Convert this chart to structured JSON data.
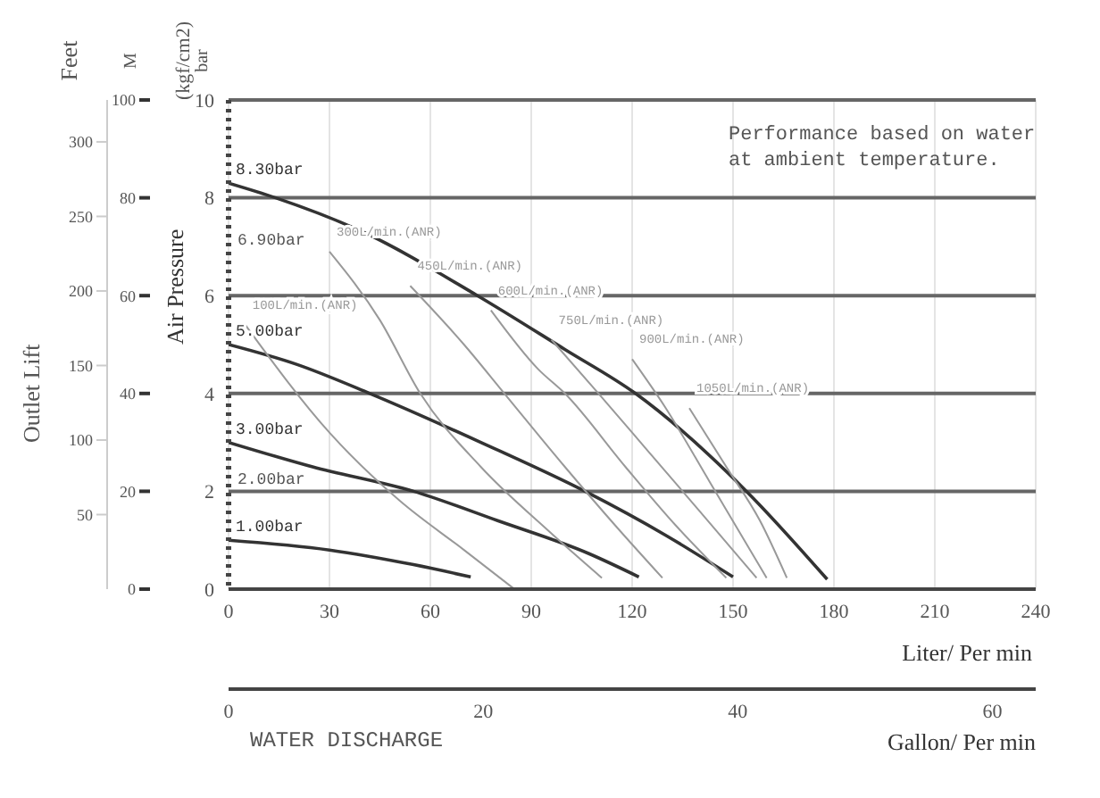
{
  "chart_data": {
    "type": "line",
    "xlabel": "Liter/ Per min",
    "ylabel": "Air Pressure",
    "y2label": "M",
    "y3label": "Feet",
    "x2label": "Gallon/ Per min",
    "xlim": [
      0,
      240
    ],
    "xticks": [
      0,
      30,
      60,
      90,
      120,
      150,
      180,
      210,
      240
    ],
    "ylim": [
      0,
      10
    ],
    "yticks": [
      0,
      2,
      4,
      6,
      8,
      10
    ],
    "y2lim": [
      0,
      100
    ],
    "y2ticks": [
      0,
      20,
      40,
      60,
      80,
      100
    ],
    "y3lim": [
      0,
      328.1
    ],
    "y3ticks": [
      50,
      100,
      150,
      200,
      250,
      300
    ],
    "x2lim": [
      0,
      63.4
    ],
    "x2ticks": [
      0,
      20,
      40,
      60
    ],
    "grid": true,
    "legend": false,
    "series": [
      {
        "name": "8.30bar",
        "color": "#333333",
        "x": [
          0,
          14,
          40,
          74,
          100,
          121,
          154,
          178
        ],
        "values": [
          8.3,
          8,
          7.3,
          6,
          4.9,
          4,
          2,
          0.2
        ]
      },
      {
        "name": "5.00bar",
        "color": "#333333",
        "x": [
          0,
          20,
          42,
          75,
          106,
          130,
          150
        ],
        "values": [
          5,
          4.6,
          4,
          3,
          2,
          1.1,
          0.25
        ]
      },
      {
        "name": "3.00bar",
        "color": "#333333",
        "x": [
          0,
          25,
          55,
          80,
          107,
          122
        ],
        "values": [
          3,
          2.5,
          2,
          1.4,
          0.73,
          0.25
        ]
      },
      {
        "name": "1.00bar",
        "color": "#333333",
        "x": [
          0,
          30,
          55,
          72
        ],
        "values": [
          1,
          0.8,
          0.5,
          0.25
        ]
      },
      {
        "name": "100L/min.(ANR)",
        "color": "#999999",
        "x": [
          5,
          30,
          51,
          70,
          85
        ],
        "values": [
          5.4,
          3.2,
          1.8,
          0.8,
          0
        ]
      },
      {
        "name": "300L/min.(ANR)",
        "color": "#999999",
        "x": [
          30,
          45,
          57,
          75,
          95,
          111
        ],
        "values": [
          6.9,
          5.5,
          4,
          2.5,
          1.2,
          0.23
        ]
      },
      {
        "name": "450L/min.(ANR)",
        "color": "#999999",
        "x": [
          54,
          70,
          82,
          100,
          115,
          129
        ],
        "values": [
          6.2,
          5,
          4,
          2.5,
          1.3,
          0.23
        ]
      },
      {
        "name": "600L/min.(ANR)",
        "color": "#999999",
        "x": [
          78,
          92,
          100,
          118,
          133,
          148
        ],
        "values": [
          5.7,
          4.5,
          4,
          2.5,
          1.3,
          0.23
        ]
      },
      {
        "name": "750L/min.(ANR)",
        "color": "#999999",
        "x": [
          96,
          110,
          125,
          140,
          157
        ],
        "values": [
          5.1,
          4,
          2.8,
          1.6,
          0.23
        ]
      },
      {
        "name": "900L/min.(ANR)",
        "color": "#999999",
        "x": [
          120,
          130,
          143,
          160
        ],
        "values": [
          4.7,
          3.7,
          2.2,
          0.23
        ]
      },
      {
        "name": "1050L/min.(ANR)",
        "color": "#999999",
        "x": [
          137,
          148,
          158,
          166
        ],
        "values": [
          3.7,
          2.5,
          1.4,
          0.23
        ]
      }
    ],
    "annotations": [
      "Performance based on water\nat ambient temperature.",
      "WATER DISCHARGE",
      "Outlet Lift",
      "(kgf/cm2)",
      "bar",
      "6.90bar",
      "2.00bar"
    ]
  }
}
